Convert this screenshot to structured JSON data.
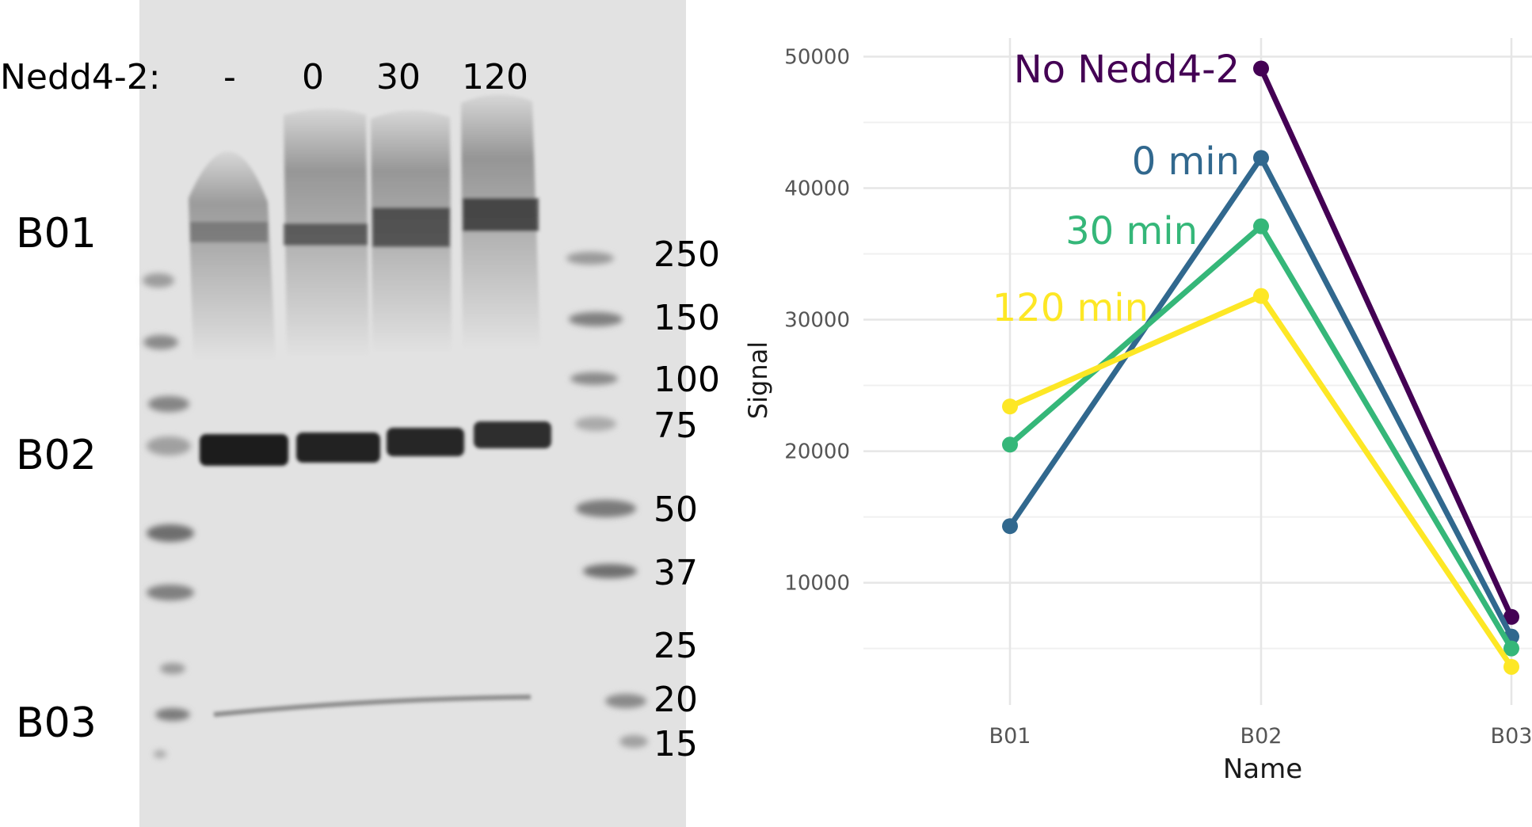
{
  "blot": {
    "nedd_label": "Nedd4-2:",
    "lane_labels": [
      "-",
      "0",
      "30",
      "120"
    ],
    "row_labels": [
      "B01",
      "B02",
      "B03"
    ],
    "ladder_labels": [
      "250",
      "150",
      "100",
      "75",
      "50",
      "37",
      "25",
      "20",
      "15"
    ]
  },
  "chart_data": {
    "type": "line",
    "categories": [
      "B01",
      "B02",
      "B03"
    ],
    "xlabel": "Name",
    "ylabel": "Signal",
    "ylim": [
      1000,
      52500
    ],
    "yticks": [
      10000,
      20000,
      30000,
      40000,
      50000
    ],
    "ytick_labels": [
      "10000",
      "20000",
      "30000",
      "40000",
      "50000"
    ],
    "grid": true,
    "series": [
      {
        "name": "No Nedd4-2",
        "color": "#440154",
        "values": [
          null,
          49100,
          7400
        ]
      },
      {
        "name": "0 min",
        "color": "#31688e",
        "values": [
          14300,
          42300,
          5900
        ]
      },
      {
        "name": "30 min",
        "color": "#35b779",
        "values": [
          20500,
          37100,
          5000
        ]
      },
      {
        "name": "120 min",
        "color": "#fde725",
        "values": [
          23400,
          31800,
          3600
        ]
      }
    ]
  }
}
